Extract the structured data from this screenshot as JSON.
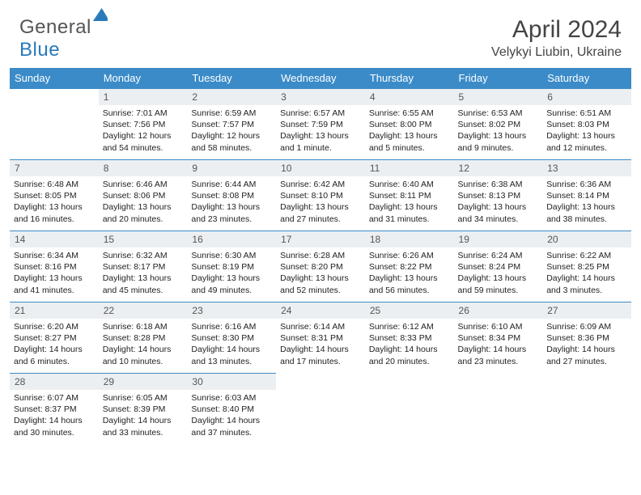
{
  "logo": {
    "part1": "General",
    "part2": "Blue"
  },
  "title": "April 2024",
  "location": "Velykyi Liubin, Ukraine",
  "weekdays": [
    "Sunday",
    "Monday",
    "Tuesday",
    "Wednesday",
    "Thursday",
    "Friday",
    "Saturday"
  ],
  "colors": {
    "header_bg": "#3b8bc8",
    "daynum_bg": "#eceff1",
    "accent": "#2a7ab9"
  },
  "grid": [
    [
      null,
      {
        "n": "1",
        "sr": "7:01 AM",
        "ss": "7:56 PM",
        "dl": "12 hours and 54 minutes."
      },
      {
        "n": "2",
        "sr": "6:59 AM",
        "ss": "7:57 PM",
        "dl": "12 hours and 58 minutes."
      },
      {
        "n": "3",
        "sr": "6:57 AM",
        "ss": "7:59 PM",
        "dl": "13 hours and 1 minute."
      },
      {
        "n": "4",
        "sr": "6:55 AM",
        "ss": "8:00 PM",
        "dl": "13 hours and 5 minutes."
      },
      {
        "n": "5",
        "sr": "6:53 AM",
        "ss": "8:02 PM",
        "dl": "13 hours and 9 minutes."
      },
      {
        "n": "6",
        "sr": "6:51 AM",
        "ss": "8:03 PM",
        "dl": "13 hours and 12 minutes."
      }
    ],
    [
      {
        "n": "7",
        "sr": "6:48 AM",
        "ss": "8:05 PM",
        "dl": "13 hours and 16 minutes."
      },
      {
        "n": "8",
        "sr": "6:46 AM",
        "ss": "8:06 PM",
        "dl": "13 hours and 20 minutes."
      },
      {
        "n": "9",
        "sr": "6:44 AM",
        "ss": "8:08 PM",
        "dl": "13 hours and 23 minutes."
      },
      {
        "n": "10",
        "sr": "6:42 AM",
        "ss": "8:10 PM",
        "dl": "13 hours and 27 minutes."
      },
      {
        "n": "11",
        "sr": "6:40 AM",
        "ss": "8:11 PM",
        "dl": "13 hours and 31 minutes."
      },
      {
        "n": "12",
        "sr": "6:38 AM",
        "ss": "8:13 PM",
        "dl": "13 hours and 34 minutes."
      },
      {
        "n": "13",
        "sr": "6:36 AM",
        "ss": "8:14 PM",
        "dl": "13 hours and 38 minutes."
      }
    ],
    [
      {
        "n": "14",
        "sr": "6:34 AM",
        "ss": "8:16 PM",
        "dl": "13 hours and 41 minutes."
      },
      {
        "n": "15",
        "sr": "6:32 AM",
        "ss": "8:17 PM",
        "dl": "13 hours and 45 minutes."
      },
      {
        "n": "16",
        "sr": "6:30 AM",
        "ss": "8:19 PM",
        "dl": "13 hours and 49 minutes."
      },
      {
        "n": "17",
        "sr": "6:28 AM",
        "ss": "8:20 PM",
        "dl": "13 hours and 52 minutes."
      },
      {
        "n": "18",
        "sr": "6:26 AM",
        "ss": "8:22 PM",
        "dl": "13 hours and 56 minutes."
      },
      {
        "n": "19",
        "sr": "6:24 AM",
        "ss": "8:24 PM",
        "dl": "13 hours and 59 minutes."
      },
      {
        "n": "20",
        "sr": "6:22 AM",
        "ss": "8:25 PM",
        "dl": "14 hours and 3 minutes."
      }
    ],
    [
      {
        "n": "21",
        "sr": "6:20 AM",
        "ss": "8:27 PM",
        "dl": "14 hours and 6 minutes."
      },
      {
        "n": "22",
        "sr": "6:18 AM",
        "ss": "8:28 PM",
        "dl": "14 hours and 10 minutes."
      },
      {
        "n": "23",
        "sr": "6:16 AM",
        "ss": "8:30 PM",
        "dl": "14 hours and 13 minutes."
      },
      {
        "n": "24",
        "sr": "6:14 AM",
        "ss": "8:31 PM",
        "dl": "14 hours and 17 minutes."
      },
      {
        "n": "25",
        "sr": "6:12 AM",
        "ss": "8:33 PM",
        "dl": "14 hours and 20 minutes."
      },
      {
        "n": "26",
        "sr": "6:10 AM",
        "ss": "8:34 PM",
        "dl": "14 hours and 23 minutes."
      },
      {
        "n": "27",
        "sr": "6:09 AM",
        "ss": "8:36 PM",
        "dl": "14 hours and 27 minutes."
      }
    ],
    [
      {
        "n": "28",
        "sr": "6:07 AM",
        "ss": "8:37 PM",
        "dl": "14 hours and 30 minutes."
      },
      {
        "n": "29",
        "sr": "6:05 AM",
        "ss": "8:39 PM",
        "dl": "14 hours and 33 minutes."
      },
      {
        "n": "30",
        "sr": "6:03 AM",
        "ss": "8:40 PM",
        "dl": "14 hours and 37 minutes."
      },
      null,
      null,
      null,
      null
    ]
  ],
  "labels": {
    "sunrise": "Sunrise:",
    "sunset": "Sunset:",
    "daylight": "Daylight:"
  }
}
